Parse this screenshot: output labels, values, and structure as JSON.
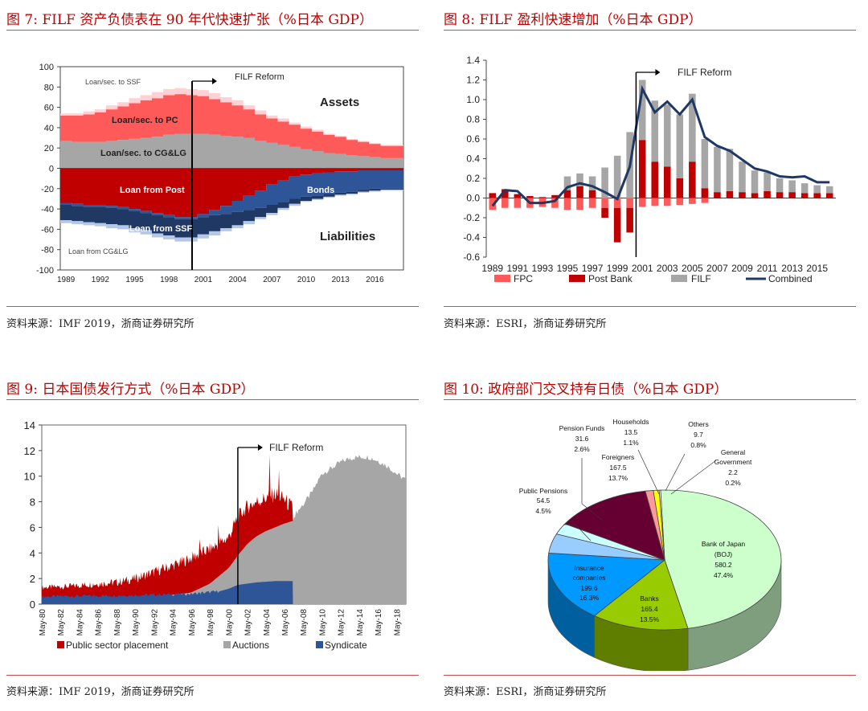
{
  "panels": [
    {
      "title": "图 7:  FILF 资产负债表在 90 年代快速扩张（%日本 GDP）",
      "source": "资料来源：IMF 2019，浙商证券研究所"
    },
    {
      "title": "图 8:  FILF 盈利快速增加（%日本 GDP）",
      "source": "资料来源：ESRI，浙商证券研究所"
    },
    {
      "title": "图 9:  日本国债发行方式（%日本 GDP）",
      "source": "资料来源：IMF 2019，浙商证券研究所"
    },
    {
      "title": "图 10:  政府部门交叉持有日债（%日本 GDP）",
      "source": "资料来源：ESRI，浙商证券研究所"
    }
  ],
  "chart_data": [
    {
      "type": "area",
      "id": "fig7",
      "ylim": [
        -100,
        100
      ],
      "yticks": [
        -100,
        -80,
        -60,
        -40,
        -20,
        0,
        20,
        40,
        60,
        80,
        100
      ],
      "xlim": [
        1988.5,
        2018.5
      ],
      "xticks": [
        "1989",
        "1992",
        "1995",
        "1998",
        "2001",
        "2004",
        "2007",
        "2010",
        "2013",
        "2016"
      ],
      "x": [
        1989,
        1990,
        1991,
        1992,
        1993,
        1994,
        1995,
        1996,
        1997,
        1998,
        1999,
        2000,
        2001,
        2002,
        2003,
        2004,
        2005,
        2006,
        2007,
        2008,
        2009,
        2010,
        2011,
        2012,
        2013,
        2014,
        2015,
        2016,
        2017,
        2018
      ],
      "assets": [
        {
          "name": "Loan/sec. to CG&LG",
          "color": "#a6a6a6",
          "values": [
            27,
            26,
            26,
            26,
            27,
            28,
            29,
            30,
            31,
            33,
            34,
            34,
            34,
            33,
            32,
            31,
            30,
            27,
            25,
            23,
            21,
            19,
            17,
            15,
            14,
            13,
            12,
            11,
            10,
            10
          ]
        },
        {
          "name": "Loan/sec. to PC",
          "color": "#ff5a5a",
          "values": [
            25,
            26,
            27,
            29,
            31,
            33,
            35,
            37,
            38,
            39,
            39,
            38,
            37,
            35,
            33,
            31,
            28,
            26,
            24,
            23,
            22,
            20,
            19,
            18,
            17,
            15,
            14,
            13,
            12,
            12
          ]
        },
        {
          "name": "Loan/sec. to SSF",
          "color": "#ffd0d4",
          "values": [
            2,
            2,
            3,
            3,
            4,
            4,
            5,
            5,
            6,
            6,
            6,
            6,
            6,
            6,
            5,
            5,
            4,
            4,
            3,
            3,
            2,
            2,
            2,
            1,
            1,
            1,
            1,
            1,
            1,
            1
          ]
        }
      ],
      "liabilities": [
        {
          "name": "Loan from Post",
          "color": "#c00000",
          "values": [
            34,
            35,
            36,
            36,
            37,
            38,
            40,
            42,
            44,
            46,
            48,
            48,
            45,
            41,
            37,
            32,
            27,
            22,
            16,
            12,
            8,
            6,
            5,
            4,
            3,
            3,
            2,
            2,
            2,
            2
          ]
        },
        {
          "name": "Bonds",
          "color": "#2e5597",
          "values": [
            2,
            2,
            2,
            2,
            2,
            2,
            2,
            2,
            2,
            2,
            2,
            2,
            3,
            5,
            8,
            11,
            14,
            17,
            20,
            21,
            22,
            22,
            22,
            21,
            21,
            20,
            19,
            18,
            18,
            18
          ]
        },
        {
          "name": "Loan from SSF",
          "color": "#1f3864",
          "values": [
            15,
            15,
            15,
            16,
            16,
            16,
            17,
            17,
            18,
            18,
            18,
            18,
            17,
            16,
            14,
            13,
            11,
            9,
            8,
            6,
            5,
            4,
            3,
            3,
            2,
            2,
            2,
            2,
            1,
            1
          ]
        },
        {
          "name": "Loan from CG&LG",
          "color": "#b4c7e7",
          "values": [
            3,
            3,
            3,
            3,
            4,
            4,
            4,
            4,
            4,
            4,
            4,
            4,
            4,
            4,
            3,
            3,
            3,
            2,
            2,
            2,
            2,
            1,
            1,
            1,
            1,
            1,
            1,
            1,
            1,
            1
          ]
        }
      ],
      "labels": {
        "assets": "Assets",
        "liabilities": "Liabilities",
        "pc": "Loan/sec. to PC",
        "cg": "Loan/sec. to CG&LG",
        "ssf": "Loan/sec. to SSF",
        "post": "Loan from Post",
        "bonds": "Bonds",
        "lssf": "Loan from SSF",
        "lcg": "Loan from CG&LG",
        "reform": "FILF Reform"
      },
      "reform_x": 2000
    },
    {
      "type": "bar",
      "id": "fig8",
      "ylim": [
        -0.6,
        1.4
      ],
      "yticks": [
        "-0.6",
        "-0.4",
        "-0.2",
        "0.0",
        "0.2",
        "0.4",
        "0.6",
        "0.8",
        "1.0",
        "1.2",
        "1.4"
      ],
      "x": [
        1989,
        1990,
        1991,
        1992,
        1993,
        1994,
        1995,
        1996,
        1997,
        1998,
        1999,
        2000,
        2001,
        2002,
        2003,
        2004,
        2005,
        2006,
        2007,
        2008,
        2009,
        2010,
        2011,
        2012,
        2013,
        2014,
        2015,
        2016
      ],
      "xtick_labels": [
        "1989",
        "1991",
        "1993",
        "1995",
        "1997",
        "1999",
        "2001",
        "2003",
        "2005",
        "2007",
        "2009",
        "2011",
        "2013",
        "2015"
      ],
      "series": [
        {
          "name": "FPC",
          "color": "#ff5a5a",
          "values": [
            -0.12,
            -0.1,
            -0.1,
            -0.1,
            -0.09,
            -0.1,
            -0.12,
            -0.12,
            -0.1,
            -0.1,
            -0.1,
            -0.1,
            -0.09,
            -0.08,
            -0.08,
            -0.07,
            -0.06,
            -0.05,
            0,
            0,
            0,
            0,
            0,
            0,
            0,
            0,
            0,
            0
          ]
        },
        {
          "name": "Post Bank",
          "color": "#c00000",
          "values": [
            0.05,
            0.09,
            0.04,
            0.02,
            0.01,
            0.03,
            0.08,
            0.12,
            0.08,
            -0.1,
            -0.35,
            -0.25,
            0.59,
            0.37,
            0.32,
            0.2,
            0.37,
            0.1,
            0.06,
            0.07,
            0.06,
            0.05,
            0.07,
            0.06,
            0.06,
            0.05,
            0.05,
            0.05
          ]
        },
        {
          "name": "FILF",
          "color": "#a6a6a6",
          "values": [
            0,
            0,
            0,
            0,
            0,
            0,
            0.14,
            0.13,
            0.14,
            0.31,
            0.43,
            0.67,
            0.61,
            0.62,
            0.63,
            0.65,
            0.69,
            0.5,
            0.46,
            0.43,
            0.31,
            0.23,
            0.19,
            0.14,
            0.12,
            0.1,
            0.08,
            0.07
          ]
        }
      ],
      "combined": {
        "name": "Combined",
        "color": "#1f3864",
        "values": [
          -0.08,
          0.08,
          0.07,
          -0.05,
          -0.05,
          -0.03,
          0.11,
          0.15,
          0.12,
          0.06,
          -0.01,
          0.32,
          1.11,
          0.87,
          0.98,
          0.85,
          1.0,
          0.62,
          0.53,
          0.48,
          0.39,
          0.3,
          0.27,
          0.22,
          0.21,
          0.22,
          0.16,
          0.16
        ]
      },
      "reform_x": 2000.5,
      "reform_label": "FILF Reform",
      "legend": [
        "FPC",
        "Post Bank",
        "FILF",
        "Combined"
      ]
    },
    {
      "type": "area",
      "id": "fig9",
      "ylim": [
        0,
        14
      ],
      "yticks": [
        "0",
        "2",
        "4",
        "6",
        "8",
        "10",
        "12",
        "14"
      ],
      "xtick_labels": [
        "May-80",
        "May-82",
        "May-84",
        "May-86",
        "May-88",
        "May-90",
        "May-92",
        "May-94",
        "May-96",
        "May-98",
        "May-00",
        "May-02",
        "May-04",
        "May-06",
        "May-08",
        "May-10",
        "May-12",
        "May-14",
        "May-16",
        "May-18"
      ],
      "series": [
        {
          "name": "Public sector placement",
          "color": "#c00000",
          "knots": [
            [
              1980,
              1.3
            ],
            [
              1983,
              1.4
            ],
            [
              1986,
              1.6
            ],
            [
              1988,
              1.7
            ],
            [
              1990,
              2.0
            ],
            [
              1992,
              2.5
            ],
            [
              1994,
              3.0
            ],
            [
              1996,
              3.6
            ],
            [
              1998,
              4.3
            ],
            [
              2000,
              5.2
            ],
            [
              2001,
              6.8
            ],
            [
              2002,
              7.6
            ],
            [
              2003,
              8.0
            ],
            [
              2004,
              8.3
            ],
            [
              2005,
              8.6
            ],
            [
              2006,
              8.2
            ],
            [
              2006.9,
              7.4
            ]
          ],
          "spikes": [
            [
              1996.9,
              5.1
            ],
            [
              1998.9,
              6.2
            ],
            [
              2004.4,
              11.7
            ],
            [
              2005.4,
              10.5
            ]
          ]
        },
        {
          "name": "Auctions",
          "color": "#a6a6a6",
          "knots": [
            [
              1980,
              0.2
            ],
            [
              1990,
              0.4
            ],
            [
              1996,
              0.9
            ],
            [
              1998,
              1.6
            ],
            [
              2000,
              2.8
            ],
            [
              2001,
              3.8
            ],
            [
              2002,
              4.7
            ],
            [
              2003,
              5.3
            ],
            [
              2004,
              5.7
            ],
            [
              2005,
              6.0
            ],
            [
              2006,
              6.3
            ],
            [
              2006.9,
              6.5
            ],
            [
              2007.1,
              7.0
            ],
            [
              2008,
              7.8
            ],
            [
              2009,
              8.8
            ],
            [
              2010,
              10.2
            ],
            [
              2011,
              10.6
            ],
            [
              2012,
              11.1
            ],
            [
              2013,
              11.4
            ],
            [
              2014,
              11.5
            ],
            [
              2015,
              11.5
            ],
            [
              2016,
              11.2
            ],
            [
              2017,
              10.8
            ],
            [
              2018,
              10.2
            ],
            [
              2019,
              9.7
            ]
          ]
        },
        {
          "name": "Syndicate",
          "color": "#2e5597",
          "knots": [
            [
              1980,
              0.6
            ],
            [
              1990,
              0.7
            ],
            [
              1996,
              0.8
            ],
            [
              1999,
              1.0
            ],
            [
              2000,
              1.2
            ],
            [
              2001,
              1.5
            ],
            [
              2003,
              1.7
            ],
            [
              2005,
              1.8
            ],
            [
              2006.9,
              1.8
            ]
          ]
        }
      ],
      "reform_x": 2001,
      "reform_label": "FILF Reform",
      "legend": [
        "Public sector placement",
        "Auctions",
        "Syndicate"
      ]
    },
    {
      "type": "pie",
      "id": "fig10",
      "slices": [
        {
          "name": "Bank of Japan",
          "extra": "(BOJ)",
          "value": "580.2",
          "pct": 47.4,
          "color": "#ccffcc"
        },
        {
          "name": "Banks",
          "value": "165.4",
          "pct": 13.5,
          "color": "#99cc00"
        },
        {
          "name": "Insurance companies",
          "value": "199.6",
          "pct": 16.3,
          "color": "#0099ff"
        },
        {
          "name": "Public Pensions",
          "value": "54.5",
          "pct": 4.5,
          "color": "#99ccff"
        },
        {
          "name": "Pension Funds",
          "value": "31.6",
          "pct": 2.6,
          "color": "#ccffff"
        },
        {
          "name": "Foreigners",
          "value": "167.5",
          "pct": 13.7,
          "color": "#660033"
        },
        {
          "name": "Households",
          "value": "13.5",
          "pct": 1.1,
          "color": "#ff9999"
        },
        {
          "name": "Others",
          "value": "9.7",
          "pct": 0.8,
          "color": "#ffff00"
        },
        {
          "name": "General Government",
          "value": "2.2",
          "pct": 0.2,
          "color": "#ffffff"
        }
      ],
      "labels": {
        "boj1": "Bank of Japan",
        "boj2": "(BOJ)",
        "boj3": "580.2",
        "boj4": "47.4%",
        "banks1": "Banks",
        "banks2": "165.4",
        "banks3": "13.5%",
        "ins1": "Insurance",
        "ins2": "companies",
        "ins3": "199.6",
        "ins4": "16.3%",
        "pp1": "Public Pensions",
        "pp2": "54.5",
        "pp3": "4.5%",
        "pf1": "Pension Funds",
        "pf2": "31.6",
        "pf3": "2.6%",
        "fo1": "Foreigners",
        "fo2": "167.5",
        "fo3": "13.7%",
        "hh1": "Households",
        "hh2": "13.5",
        "hh3": "1.1%",
        "ot1": "Others",
        "ot2": "9.7",
        "ot3": "0.8%",
        "gg1": "General",
        "gg2": "Government",
        "gg3": "2.2",
        "gg4": "0.2%"
      }
    }
  ]
}
